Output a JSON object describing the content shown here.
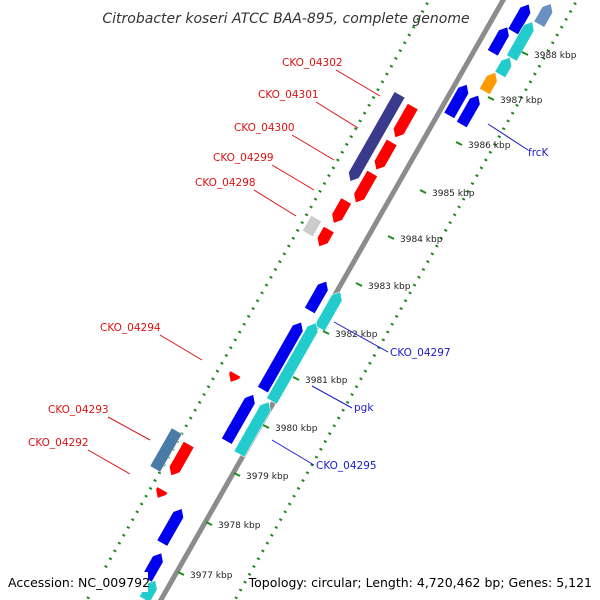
{
  "title": "Citrobacter koseri ATCC BAA-895, complete genome",
  "footer": {
    "accession": "Accession: NC_009792",
    "summary": "Topology: circular; Length: 4,720,462 bp; Genes: 5,121"
  },
  "colors": {
    "backbone": "#8c8c8c",
    "gc_dots": "#1e8a1e",
    "forward_cds": "#0000ee",
    "forward_other": "#22cccc",
    "reverse_cds": "#ff0000",
    "reverse_purple": "#3a3a8c",
    "reverse_steel": "#4a7aa6",
    "gray_feature": "#cccccc",
    "orange_feature": "#ff9900",
    "label_red": "#dd1111",
    "label_blue": "#1a1acc"
  },
  "ticks": [
    {
      "label": "3977 kbp"
    },
    {
      "label": "3978 kbp"
    },
    {
      "label": "3979 kbp"
    },
    {
      "label": "3980 kbp"
    },
    {
      "label": "3981 kbp"
    },
    {
      "label": "3982 kbp"
    },
    {
      "label": "3983 kbp"
    },
    {
      "label": "3984 kbp"
    },
    {
      "label": "3985 kbp"
    },
    {
      "label": "3986 kbp"
    },
    {
      "label": "3987 kbp"
    },
    {
      "label": "3988 kbp"
    }
  ],
  "labels": [
    {
      "text": "CKO_04302",
      "strand": "reverse"
    },
    {
      "text": "CKO_04301",
      "strand": "reverse"
    },
    {
      "text": "CKO_04300",
      "strand": "reverse"
    },
    {
      "text": "CKO_04299",
      "strand": "reverse"
    },
    {
      "text": "CKO_04298",
      "strand": "reverse"
    },
    {
      "text": "CKO_04294",
      "strand": "reverse"
    },
    {
      "text": "CKO_04293",
      "strand": "reverse"
    },
    {
      "text": "CKO_04292",
      "strand": "reverse"
    },
    {
      "text": "frcK",
      "strand": "forward"
    },
    {
      "text": "CKO_04297",
      "strand": "forward"
    },
    {
      "text": "pgk",
      "strand": "forward"
    },
    {
      "text": "CKO_04295",
      "strand": "forward"
    }
  ]
}
